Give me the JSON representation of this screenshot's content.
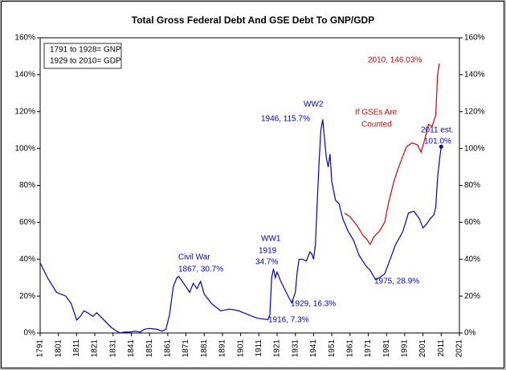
{
  "chart_data": {
    "type": "line",
    "title": "Total Gross Federal Debt  And GSE Debt To GNP/GDP",
    "xlim": [
      1791,
      2021
    ],
    "xticks": [
      1791,
      1801,
      1811,
      1821,
      1831,
      1841,
      1851,
      1861,
      1871,
      1881,
      1891,
      1901,
      1911,
      1921,
      1931,
      1941,
      1951,
      1961,
      1971,
      1981,
      1991,
      2001,
      2011,
      2021
    ],
    "ylim": [
      0,
      160
    ],
    "yticks": [
      {
        "value": 0,
        "label": "0%"
      },
      {
        "value": 20,
        "label": "20%"
      },
      {
        "value": 40,
        "label": "40%"
      },
      {
        "value": 60,
        "label": "60%"
      },
      {
        "value": 80,
        "label": "80%"
      },
      {
        "value": 100,
        "label": "100%"
      },
      {
        "value": 120,
        "label": "120%"
      },
      {
        "value": 140,
        "label": "140%"
      },
      {
        "value": 160,
        "label": "160%"
      }
    ],
    "y2lim": [
      0,
      160
    ],
    "y2ticks": [
      {
        "value": 0,
        "label": "0%"
      },
      {
        "value": 20,
        "label": "20%"
      },
      {
        "value": 40,
        "label": "40%"
      },
      {
        "value": 60,
        "label": "60%"
      },
      {
        "value": 80,
        "label": "80%"
      },
      {
        "value": 100,
        "label": "100%"
      },
      {
        "value": 120,
        "label": "120%"
      },
      {
        "value": 140,
        "label": "140%"
      },
      {
        "value": 160,
        "label": "160%"
      }
    ],
    "series": [
      {
        "color": "#0000cc",
        "x": [
          1791,
          1795,
          1800,
          1805,
          1808,
          1811,
          1813,
          1815,
          1817,
          1820,
          1822,
          1825,
          1830,
          1833,
          1835,
          1837,
          1840,
          1843,
          1846,
          1848,
          1851,
          1855,
          1858,
          1860,
          1862,
          1864,
          1866,
          1867,
          1869,
          1871,
          1873,
          1875,
          1877,
          1879,
          1881,
          1885,
          1890,
          1895,
          1900,
          1905,
          1910,
          1914,
          1916,
          1917,
          1918,
          1919,
          1920,
          1921,
          1923,
          1925,
          1927,
          1929,
          1931,
          1932,
          1933,
          1935,
          1937,
          1939,
          1940,
          1941,
          1942,
          1943,
          1944,
          1945,
          1946,
          1947,
          1948,
          1949,
          1950,
          1951,
          1953,
          1955,
          1957,
          1960,
          1963,
          1966,
          1970,
          1972,
          1975,
          1977,
          1980,
          1983,
          1986,
          1990,
          1993,
          1996,
          1999,
          2001,
          2003,
          2005,
          2007,
          2008,
          2009,
          2010,
          2011
        ],
        "values": [
          38,
          30,
          22,
          20,
          16,
          7,
          9,
          12,
          11,
          9,
          11,
          8,
          3,
          1,
          0,
          0.5,
          0.5,
          1,
          0.5,
          2,
          2.5,
          2,
          1,
          2,
          10,
          25,
          30,
          30.7,
          28,
          25,
          22,
          27,
          24,
          28,
          21,
          16,
          12,
          13,
          12,
          10,
          8,
          7.5,
          7.3,
          10,
          30,
          34.7,
          30,
          33,
          28,
          24,
          20,
          16.3,
          22,
          33,
          40,
          40,
          39,
          44,
          43,
          40,
          48,
          71,
          92,
          110,
          115.7,
          105,
          95,
          90,
          97,
          82,
          72,
          70,
          62,
          55,
          50,
          42,
          36,
          34,
          28.9,
          30,
          32,
          40,
          48,
          55,
          65,
          66,
          62,
          57,
          59,
          62,
          64,
          68,
          84,
          93,
          101.0
        ]
      },
      {
        "color": "#dd0000",
        "x": [
          1958,
          1961,
          1965,
          1968,
          1970,
          1972,
          1974,
          1977,
          1980,
          1982,
          1985,
          1987,
          1990,
          1992,
          1995,
          1998,
          2000,
          2002,
          2004,
          2006,
          2008,
          2009,
          2010
        ],
        "values": [
          65,
          63,
          58,
          53,
          51,
          48,
          52,
          55,
          60,
          70,
          82,
          88,
          96,
          101,
          103,
          102,
          98,
          105,
          113,
          112,
          118,
          140,
          146.03
        ]
      }
    ],
    "point": {
      "x": 2011,
      "value": 101.0,
      "color": "#0000cc"
    },
    "annotations": [
      {
        "text": "1791 to 1928= GNP",
        "color": "#000000"
      },
      {
        "text": "1929 to 2010= GDP",
        "color": "#000000"
      },
      {
        "text": "Civil War",
        "color": "#0000cc"
      },
      {
        "text": "1867, 30.7%",
        "color": "#0000cc"
      },
      {
        "text": "WW1",
        "color": "#0000cc"
      },
      {
        "text": "1919",
        "color": "#0000cc"
      },
      {
        "text": "34.7%",
        "color": "#0000cc"
      },
      {
        "text": "1916, 7.3%",
        "color": "#0000cc"
      },
      {
        "text": "1929, 16.3%",
        "color": "#0000cc"
      },
      {
        "text": "WW2",
        "color": "#0000cc"
      },
      {
        "text": "1946, 115.7%",
        "color": "#0000cc"
      },
      {
        "text": "1975, 28.9%",
        "color": "#0000cc"
      },
      {
        "text": "2010, 146.03%",
        "color": "#dd0000"
      },
      {
        "text": "If GSEs Are",
        "color": "#dd0000"
      },
      {
        "text": "Counted",
        "color": "#dd0000"
      },
      {
        "text": "2011 est.",
        "color": "#0000cc"
      },
      {
        "text": "101.0%",
        "color": "#0000cc"
      }
    ]
  }
}
